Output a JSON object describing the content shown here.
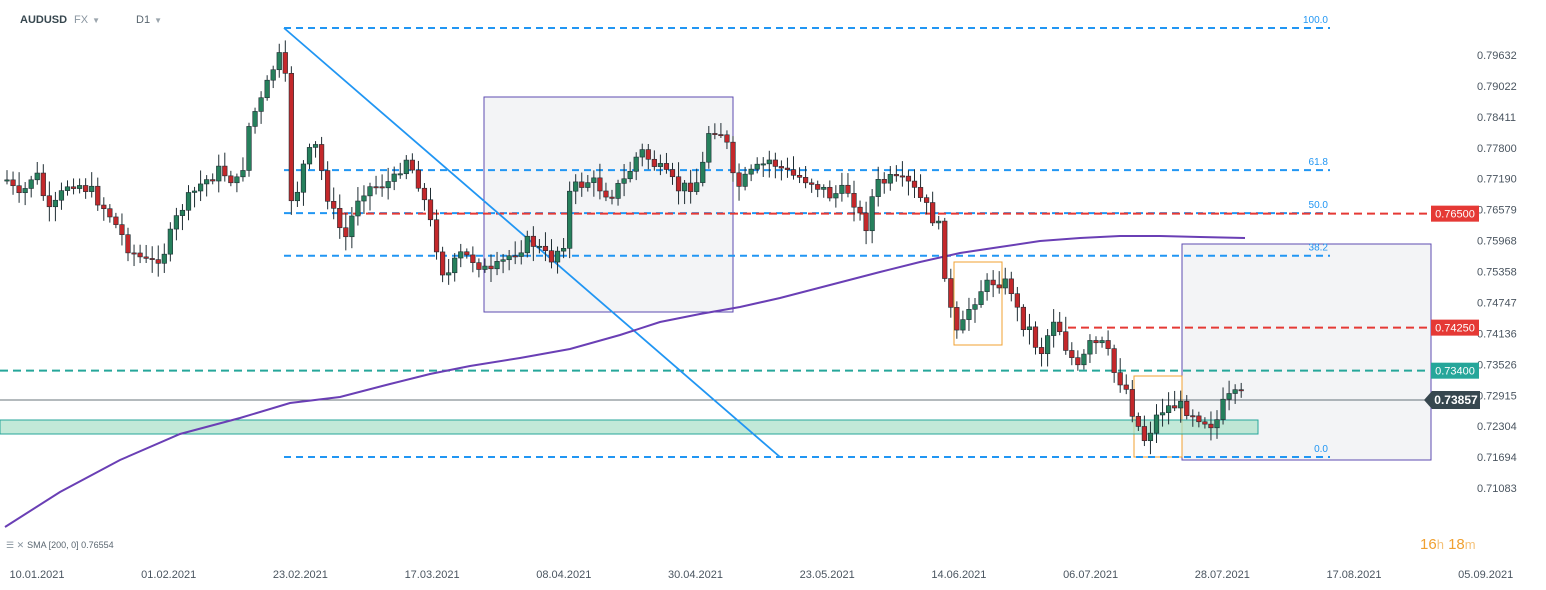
{
  "header": {
    "symbol": "AUDUSD",
    "market": "FX",
    "timeframe": "D1"
  },
  "indicator_legend": "SMA [200, 0] 0.76554",
  "timer": {
    "hours": "16",
    "h_unit": "h",
    "minutes": "18",
    "m_unit": "m"
  },
  "colors": {
    "up": "#26805c",
    "down": "#c4282b",
    "fib": "#2196f3",
    "sma": "#6a3fb5",
    "resistance": "#e53935",
    "support": "#26a69a",
    "box": "#5e4bb0",
    "orange_box": "#f0a030",
    "price_tag": "#37474f"
  },
  "chart_data": {
    "type": "candlestick",
    "symbol": "AUDUSD",
    "ylim": [
      0.709,
      0.801
    ],
    "y_ticks": [
      "0.79632",
      "0.79022",
      "0.78411",
      "0.77800",
      "0.77190",
      "0.76579",
      "0.75968",
      "0.75358",
      "0.74747",
      "0.74136",
      "0.73526",
      "0.72915",
      "0.72304",
      "0.71694",
      "0.71083"
    ],
    "x_tick_labels": [
      "10.01.2021",
      "01.02.2021",
      "23.02.2021",
      "17.03.2021",
      "08.04.2021",
      "30.04.2021",
      "23.05.2021",
      "14.06.2021",
      "06.07.2021",
      "28.07.2021",
      "17.08.2021",
      "05.09.2021"
    ],
    "current_price": "0.73857",
    "price_levels": [
      {
        "label": "0.76500",
        "value": 0.765,
        "color": "#e53935"
      },
      {
        "label": "0.74250",
        "value": 0.7425,
        "color": "#e53935"
      },
      {
        "label": "0.73400",
        "value": 0.734,
        "color": "#26a69a"
      }
    ],
    "fib_levels": [
      {
        "label": "100.0",
        "value": 0.801
      },
      {
        "label": "61.8",
        "value": 0.7736
      },
      {
        "label": "50.0",
        "value": 0.7651
      },
      {
        "label": "38.2",
        "value": 0.7567
      },
      {
        "label": "0.0",
        "value": 0.7291
      }
    ],
    "sma": {
      "name": "SMA",
      "period": 200,
      "last": 0.76554
    }
  }
}
